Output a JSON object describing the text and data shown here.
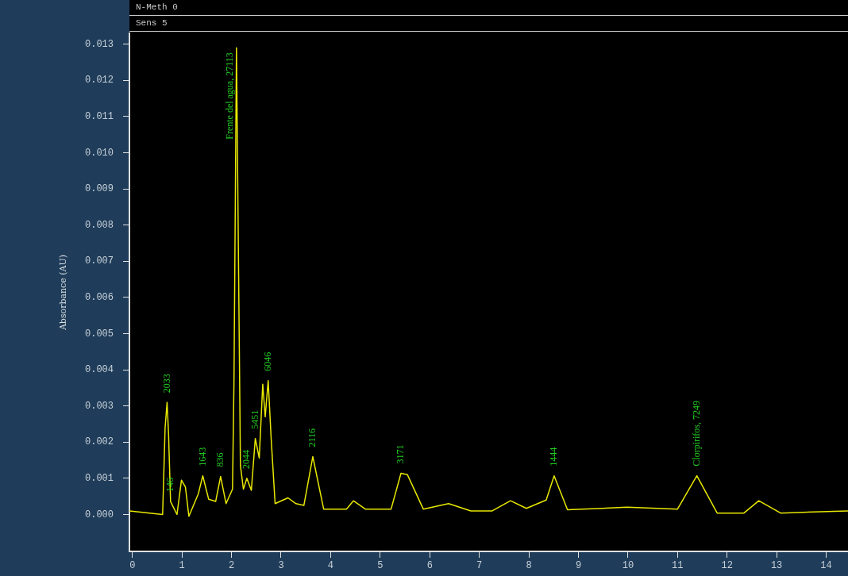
{
  "chart_data": {
    "type": "line",
    "ylabel": "Absorbance (AU)",
    "annotations": [
      "N-Meth 0",
      "Sens 5",
      {
        "text": "2033",
        "x": 0.7,
        "y": 0.0031
      },
      {
        "text": "146",
        "x": 0.77,
        "y": 0.00036
      },
      {
        "text": "1643",
        "x": 1.42,
        "y": 0.00107
      },
      {
        "text": "836",
        "x": 1.78,
        "y": 0.00105
      },
      {
        "text": "Frente del agua, 27113",
        "x": 2.1,
        "y": 0.0129
      },
      {
        "text": "2044",
        "x": 2.31,
        "y": 0.001
      },
      {
        "text": "5451",
        "x": 2.48,
        "y": 0.0021
      },
      {
        "text": "6046",
        "x": 2.74,
        "y": 0.0037
      },
      {
        "text": "2116",
        "x": 3.64,
        "y": 0.0016
      },
      {
        "text": "3171",
        "x": 5.42,
        "y": 0.00114
      },
      {
        "text": "1444",
        "x": 8.51,
        "y": 0.00107
      },
      {
        "text": "Clorpirifos, 7249",
        "x": 11.39,
        "y": 0.00107
      }
    ],
    "series": [
      {
        "color": "#e8e800",
        "x": [
          -0.06,
          0.61,
          0.66,
          0.7,
          0.73,
          0.77,
          0.9,
          0.99,
          1.07,
          1.14,
          1.33,
          1.42,
          1.54,
          1.68,
          1.78,
          1.89,
          2.02,
          2.05,
          2.1,
          2.18,
          2.24,
          2.31,
          2.4,
          2.48,
          2.56,
          2.63,
          2.68,
          2.74,
          2.8,
          2.88,
          3.14,
          3.3,
          3.46,
          3.64,
          3.86,
          4.32,
          4.46,
          4.7,
          5.22,
          5.42,
          5.55,
          5.87,
          6.38,
          6.83,
          7.26,
          7.63,
          7.95,
          8.35,
          8.51,
          8.78,
          9.98,
          11.0,
          11.39,
          11.8,
          12.34,
          12.64,
          13.08,
          14.44
        ],
        "values": [
          0.0001,
          0,
          0.0024,
          0.0031,
          0.0022,
          0.00036,
          0,
          0.00095,
          0.00076,
          -5e-05,
          0.00057,
          0.00107,
          0.00042,
          0.00036,
          0.00105,
          0.0003,
          0.0007,
          0.0037,
          0.0129,
          0.00135,
          0.0007,
          0.001,
          0.00067,
          0.0021,
          0.00156,
          0.0036,
          0.0027,
          0.0037,
          0.0021,
          0.0003,
          0.00046,
          0.0003,
          0.00025,
          0.0016,
          0.00015,
          0.00015,
          0.00038,
          0.00015,
          0.00015,
          0.00114,
          0.0011,
          0.00015,
          0.0003,
          0.0001,
          0.0001,
          0.00038,
          0.00017,
          0.0004,
          0.00107,
          0.00013,
          0.0002,
          0.00015,
          0.00107,
          4e-05,
          4e-05,
          0.00038,
          4e-05,
          0.0001
        ]
      }
    ],
    "xlim": [
      -0.06,
      14.44
    ],
    "ylim": [
      -0.00102,
      0.0133
    ],
    "xticks": [
      0,
      1,
      2,
      3,
      4,
      5,
      6,
      7,
      8,
      9,
      10,
      11,
      12,
      13,
      14
    ],
    "yticks": [
      {
        "value": 0,
        "label": "0.000"
      },
      {
        "value": 0.001,
        "label": "0.001"
      },
      {
        "value": 0.002,
        "label": "0.002"
      },
      {
        "value": 0.003,
        "label": "0.003"
      },
      {
        "value": 0.004,
        "label": "0.004"
      },
      {
        "value": 0.005,
        "label": "0.005"
      },
      {
        "value": 0.006,
        "label": "0.006"
      },
      {
        "value": 0.007,
        "label": "0.007"
      },
      {
        "value": 0.008,
        "label": "0.008"
      },
      {
        "value": 0.009,
        "label": "0.009"
      },
      {
        "value": 0.01,
        "label": "0.010"
      },
      {
        "value": 0.011,
        "label": "0.011"
      },
      {
        "value": 0.012,
        "label": "0.012"
      },
      {
        "value": 0.013,
        "label": "0.013"
      }
    ],
    "grid": false,
    "legend": false,
    "marker": "none",
    "line_style": "solid"
  }
}
